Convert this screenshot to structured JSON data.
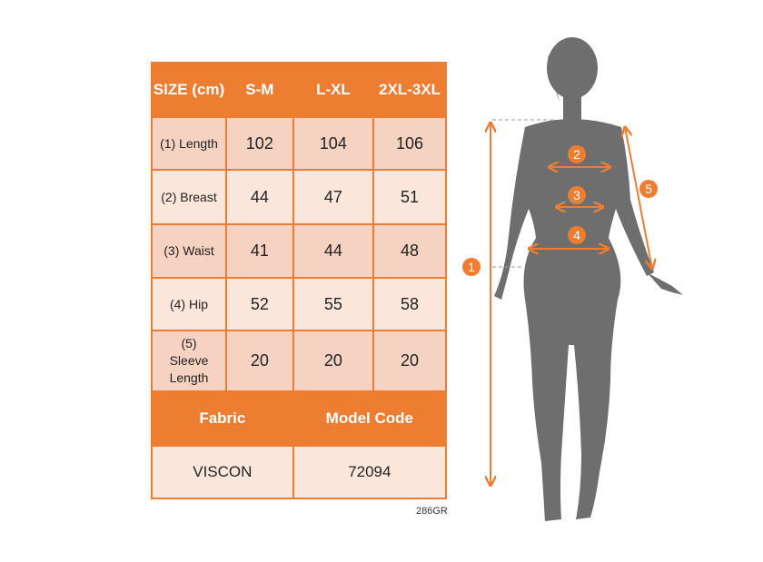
{
  "table": {
    "headers": [
      "SIZE (cm)",
      "S-M",
      "L-XL",
      "2XL-3XL"
    ],
    "rows": [
      {
        "label": "(1) Length",
        "values": [
          "102",
          "104",
          "106"
        ]
      },
      {
        "label": "(2) Breast",
        "values": [
          "44",
          "47",
          "51"
        ]
      },
      {
        "label": "(3) Waist",
        "values": [
          "41",
          "44",
          "48"
        ]
      },
      {
        "label": "(4) Hip",
        "values": [
          "52",
          "55",
          "58"
        ]
      },
      {
        "label": "(5) Sleeve Length",
        "values": [
          "20",
          "20",
          "20"
        ]
      }
    ],
    "footer_headers": [
      "Fabric",
      "Model Code"
    ],
    "footer_values": [
      "VISCON",
      "72094"
    ]
  },
  "product_code": "286GR",
  "figure": {
    "markers": [
      "1",
      "2",
      "3",
      "4",
      "5"
    ],
    "accent": "#ED7D31",
    "silhouette": "#6E6E6E"
  }
}
